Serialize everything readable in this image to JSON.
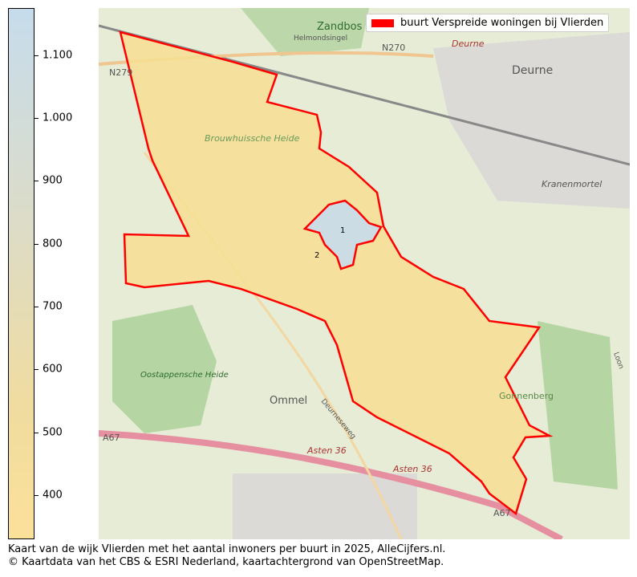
{
  "colorbar": {
    "min": 330,
    "max": 1175,
    "ticks": [
      {
        "value": 1100,
        "label": "1.100"
      },
      {
        "value": 1000,
        "label": "1.000"
      },
      {
        "value": 900,
        "label": "900"
      },
      {
        "value": 800,
        "label": "800"
      },
      {
        "value": 700,
        "label": "700"
      },
      {
        "value": 600,
        "label": "600"
      },
      {
        "value": 500,
        "label": "500"
      },
      {
        "value": 400,
        "label": "400"
      }
    ],
    "colors": [
      "#c6dcec",
      "#fbe09a"
    ]
  },
  "legend": {
    "label": "buurt Verspreide woningen bij Vlierden",
    "color": "#ff0000"
  },
  "regions": [
    {
      "label": "1",
      "fill": "#c6dcec"
    },
    {
      "label": "2",
      "fill": "#f7df93"
    }
  ],
  "map_labels": {
    "zandbos": "Zandbos",
    "helmondsingel": "Helmondsingel",
    "n270": "N270",
    "n279": "N279",
    "deurne_city": "Deurne",
    "deurne_road": "Deurne",
    "brouwhuis": "Brouwhuissche Heide",
    "kranenmortel": "Kranenmortel",
    "oostappen": "Oostappensche Heide",
    "ommel": "Ommel",
    "a67a": "A67",
    "a67b": "A67",
    "asten1": "Asten 36",
    "asten2": "Asten 36",
    "gonnenberg": "Gonnenberg",
    "deurneseweg": "Deurneseweg",
    "loon": "Loon"
  },
  "caption": {
    "line1": "Kaart van de wijk Vlierden met het aantal inwoners per buurt in 2025, AlleCijfers.nl.",
    "line2": "© Kaartdata van het CBS & ESRI Nederland, kaartachtergrond van OpenStreetMap."
  }
}
